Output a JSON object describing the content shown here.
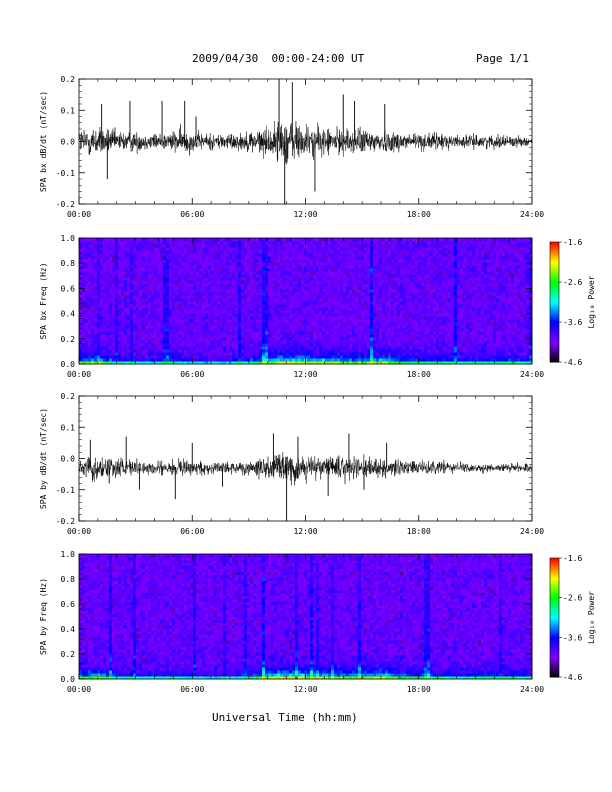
{
  "header": {
    "title": "2009/04/30  00:00-24:00 UT",
    "page": "Page 1/1"
  },
  "x_axis_title": "Universal Time (hh:mm)",
  "chart_data": [
    {
      "type": "line",
      "ylabel": "SPA bx dB/dt (nT/sec)",
      "xlim": [
        0,
        24
      ],
      "ylim": [
        -0.2,
        0.2
      ],
      "x_ticks": [
        "00:00",
        "06:00",
        "12:00",
        "18:00",
        "24:00"
      ],
      "y_ticks": [
        "0.2",
        "0.1",
        "0.0",
        "-0.1",
        "-0.2"
      ],
      "baseline": 0.0,
      "envelope": {
        "x": [
          0,
          0.5,
          1.0,
          1.5,
          2.0,
          2.5,
          3.0,
          3.5,
          4.0,
          4.5,
          5.0,
          5.5,
          6.0,
          6.5,
          7.0,
          7.5,
          8.0,
          8.5,
          9.0,
          9.5,
          10.0,
          10.5,
          11.0,
          11.5,
          12.0,
          12.5,
          13.0,
          13.5,
          14.0,
          14.5,
          15.0,
          15.5,
          16.0,
          16.5,
          17.0,
          17.5,
          18.0,
          18.5,
          19.0,
          19.5,
          20.0,
          20.5,
          21.0,
          21.5,
          22.0,
          22.5,
          23.0,
          23.5,
          24.0
        ],
        "amplitude": [
          0.06,
          0.08,
          0.07,
          0.06,
          0.05,
          0.05,
          0.05,
          0.04,
          0.04,
          0.04,
          0.05,
          0.06,
          0.05,
          0.04,
          0.04,
          0.04,
          0.04,
          0.04,
          0.05,
          0.06,
          0.07,
          0.09,
          0.12,
          0.1,
          0.08,
          0.07,
          0.07,
          0.06,
          0.06,
          0.06,
          0.06,
          0.06,
          0.06,
          0.05,
          0.05,
          0.05,
          0.04,
          0.04,
          0.04,
          0.04,
          0.03,
          0.03,
          0.03,
          0.03,
          0.03,
          0.03,
          0.03,
          0.02,
          0.02
        ]
      },
      "spikes": [
        [
          1.2,
          0.12
        ],
        [
          1.5,
          -0.12
        ],
        [
          2.7,
          0.13
        ],
        [
          4.4,
          0.13
        ],
        [
          5.6,
          0.13
        ],
        [
          6.2,
          0.08
        ],
        [
          10.6,
          0.2
        ],
        [
          10.9,
          -0.2
        ],
        [
          11.3,
          0.19
        ],
        [
          12.5,
          -0.16
        ],
        [
          14.0,
          0.15
        ],
        [
          14.6,
          0.13
        ],
        [
          16.2,
          0.12
        ]
      ]
    },
    {
      "type": "heatmap",
      "ylabel": "SPA bx Freq (Hz)",
      "xlim": [
        0,
        24
      ],
      "ylim": [
        0.0,
        1.0
      ],
      "x_ticks": [
        "00:00",
        "06:00",
        "12:00",
        "18:00",
        "24:00"
      ],
      "y_ticks": [
        "1.0",
        "0.8",
        "0.6",
        "0.4",
        "0.2",
        "0.0"
      ],
      "colorbar": {
        "label": "Log₁₀ Power",
        "range": [
          -4.6,
          -1.6
        ],
        "ticks": [
          "-1.6",
          "-2.6",
          "-3.6",
          "-4.6"
        ],
        "colors": [
          "#000000",
          "#7f00ff",
          "#0000ff",
          "#00ffff",
          "#00ff00",
          "#ffff00",
          "#ff0000"
        ]
      },
      "activity": {
        "x": [
          0,
          1,
          2,
          3,
          4,
          5,
          6,
          7,
          8,
          9,
          10,
          11,
          12,
          13,
          14,
          15,
          16,
          17,
          18,
          19,
          20,
          21,
          22,
          23,
          24
        ],
        "low_freq_power": [
          -3.0,
          -2.8,
          -3.3,
          -3.6,
          -3.5,
          -3.4,
          -3.6,
          -3.7,
          -3.6,
          -3.4,
          -2.8,
          -2.5,
          -2.6,
          -2.7,
          -2.8,
          -2.9,
          -2.6,
          -3.0,
          -3.2,
          -3.3,
          -3.4,
          -3.4,
          -3.3,
          -3.3,
          -3.5
        ]
      },
      "background_power": -4.0
    },
    {
      "type": "line",
      "ylabel": "SPA by dB/dt (nT/sec)",
      "xlim": [
        0,
        24
      ],
      "ylim": [
        -0.2,
        0.2
      ],
      "x_ticks": [
        "00:00",
        "06:00",
        "12:00",
        "18:00",
        "24:00"
      ],
      "y_ticks": [
        "0.2",
        "0.1",
        "0.0",
        "-0.1",
        "-0.2"
      ],
      "baseline": -0.03,
      "envelope": {
        "x": [
          0,
          0.5,
          1.0,
          1.5,
          2.0,
          2.5,
          3.0,
          3.5,
          4.0,
          4.5,
          5.0,
          5.5,
          6.0,
          6.5,
          7.0,
          7.5,
          8.0,
          8.5,
          9.0,
          9.5,
          10.0,
          10.5,
          11.0,
          11.5,
          12.0,
          12.5,
          13.0,
          13.5,
          14.0,
          14.5,
          15.0,
          15.5,
          16.0,
          16.5,
          17.0,
          17.5,
          18.0,
          18.5,
          19.0,
          19.5,
          20.0,
          20.5,
          21.0,
          21.5,
          22.0,
          22.5,
          23.0,
          23.5,
          24.0
        ],
        "amplitude": [
          0.03,
          0.05,
          0.06,
          0.05,
          0.04,
          0.04,
          0.04,
          0.03,
          0.03,
          0.04,
          0.04,
          0.05,
          0.04,
          0.03,
          0.03,
          0.03,
          0.03,
          0.03,
          0.03,
          0.04,
          0.05,
          0.07,
          0.09,
          0.07,
          0.06,
          0.06,
          0.05,
          0.05,
          0.06,
          0.05,
          0.05,
          0.05,
          0.04,
          0.04,
          0.04,
          0.03,
          0.03,
          0.03,
          0.03,
          0.03,
          0.03,
          0.03,
          0.02,
          0.02,
          0.02,
          0.02,
          0.02,
          0.02,
          0.02
        ]
      },
      "spikes": [
        [
          0.6,
          0.06
        ],
        [
          1.6,
          -0.08
        ],
        [
          2.5,
          0.07
        ],
        [
          3.2,
          -0.1
        ],
        [
          5.1,
          -0.13
        ],
        [
          6.0,
          0.05
        ],
        [
          7.6,
          -0.09
        ],
        [
          10.3,
          0.08
        ],
        [
          11.0,
          -0.2
        ],
        [
          11.6,
          0.07
        ],
        [
          13.2,
          -0.12
        ],
        [
          14.3,
          0.08
        ],
        [
          15.1,
          -0.1
        ],
        [
          16.3,
          0.05
        ]
      ]
    },
    {
      "type": "heatmap",
      "ylabel": "SPA by Freq (Hz)",
      "xlim": [
        0,
        24
      ],
      "ylim": [
        0.0,
        1.0
      ],
      "x_ticks": [
        "00:00",
        "06:00",
        "12:00",
        "18:00",
        "24:00"
      ],
      "y_ticks": [
        "1.0",
        "0.8",
        "0.6",
        "0.4",
        "0.2",
        "0.0"
      ],
      "colorbar": {
        "label": "Log₁₀ Power",
        "range": [
          -4.6,
          -1.6
        ],
        "ticks": [
          "-1.6",
          "-2.6",
          "-3.6",
          "-4.6"
        ],
        "colors": [
          "#000000",
          "#7f00ff",
          "#0000ff",
          "#00ffff",
          "#00ff00",
          "#ffff00",
          "#ff0000"
        ]
      },
      "activity": {
        "x": [
          0,
          1,
          2,
          3,
          4,
          5,
          6,
          7,
          8,
          9,
          10,
          11,
          12,
          13,
          14,
          15,
          16,
          17,
          18,
          19,
          20,
          21,
          22,
          23,
          24
        ],
        "low_freq_power": [
          -3.0,
          -2.8,
          -3.3,
          -3.6,
          -3.5,
          -3.4,
          -3.6,
          -3.7,
          -3.6,
          -3.4,
          -2.6,
          -2.4,
          -2.6,
          -2.7,
          -2.8,
          -2.9,
          -2.6,
          -3.0,
          -3.2,
          -3.3,
          -3.4,
          -3.4,
          -3.3,
          -3.3,
          -3.5
        ]
      },
      "background_power": -4.0
    }
  ]
}
